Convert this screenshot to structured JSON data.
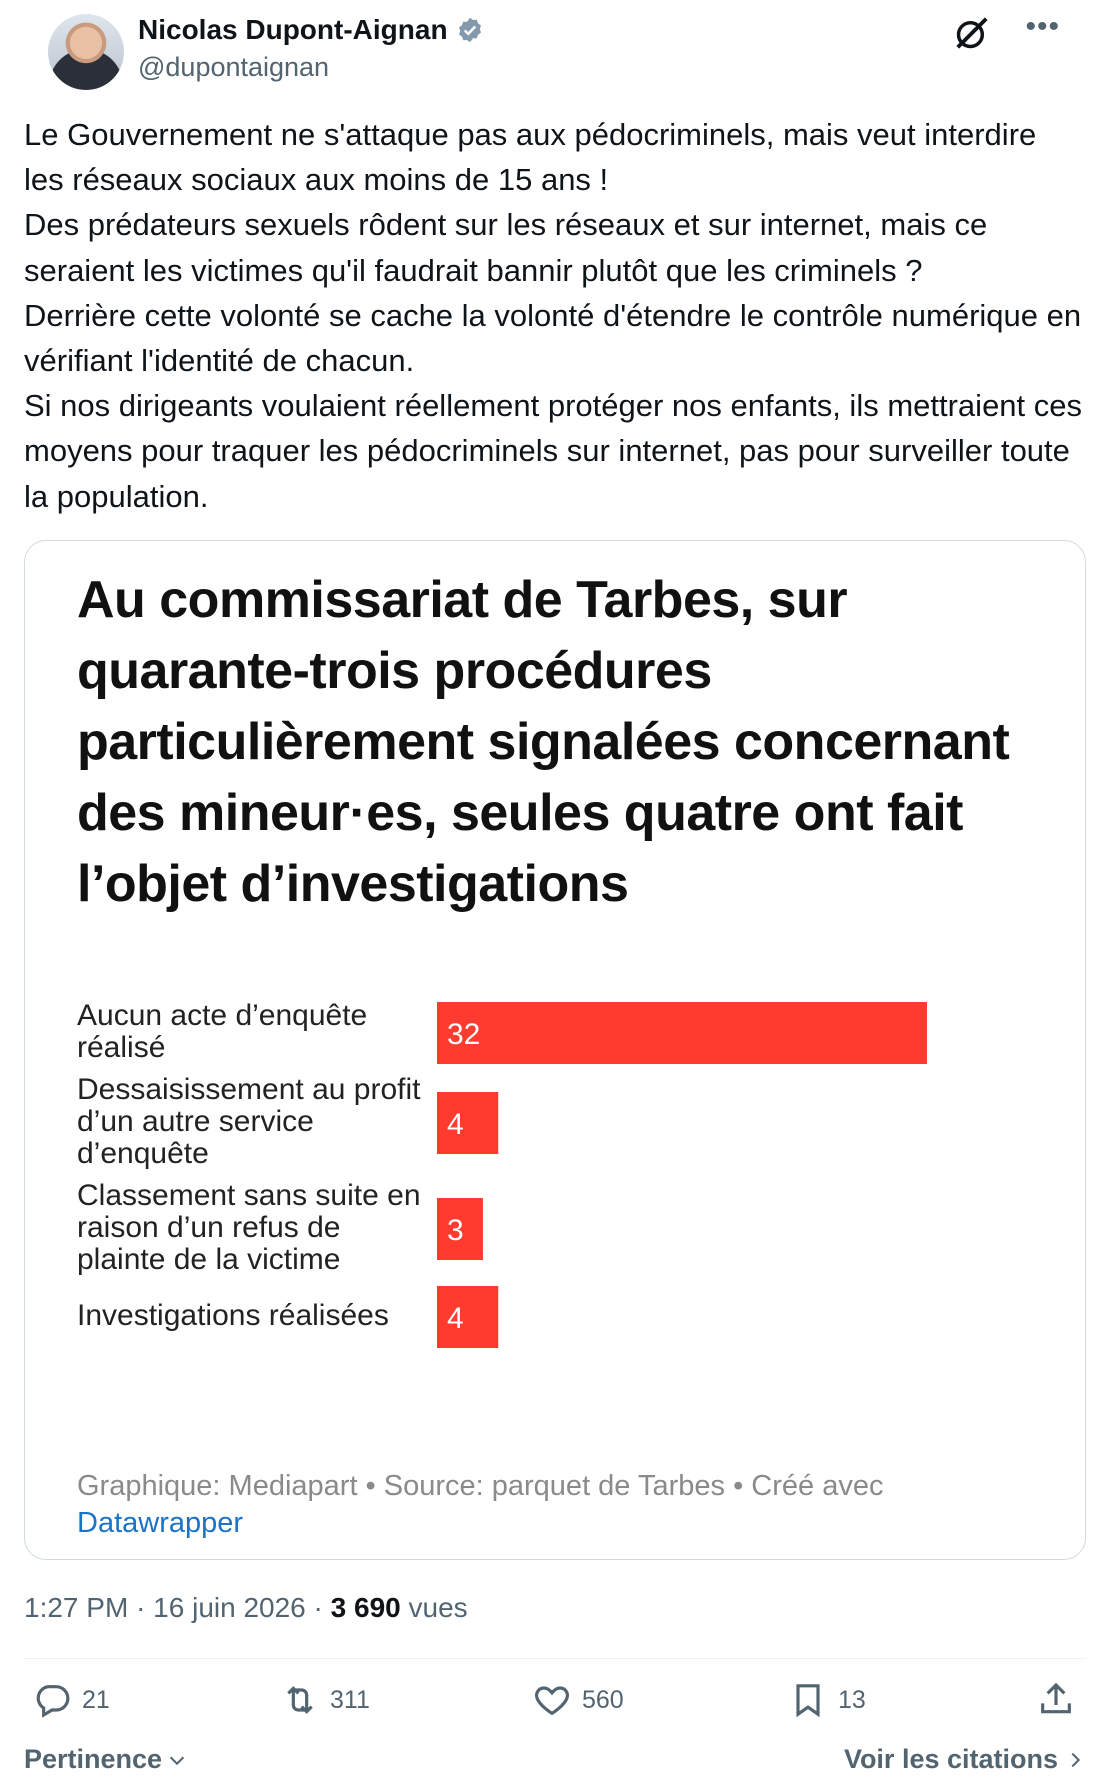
{
  "author": {
    "name": "Nicolas Dupont-Aignan",
    "handle": "@dupontaignan"
  },
  "tweet": {
    "text": "Le Gouvernement ne s'attaque pas aux pédocriminels, mais veut interdire les réseaux sociaux aux moins de 15 ans !\nDes prédateurs sexuels rôdent sur les réseaux et sur internet, mais ce seraient les victimes qu'il faudrait bannir plutôt que les criminels ?\nDerrière cette volonté se cache la volonté d'étendre le contrôle numérique en vérifiant l'identité de chacun.\nSi nos dirigeants voulaient réellement protéger nos enfants, ils mettraient ces moyens pour traquer les pédocriminels sur internet, pas pour surveiller toute la population."
  },
  "chart_data": {
    "type": "bar",
    "orientation": "horizontal",
    "title": "Au commissariat de Tarbes, sur quarante-trois procédures particulièrement signalées concernant des mineur·es, seules quatre ont fait l’objet d’investigations",
    "categories": [
      "Aucun acte d’enquête réalisé",
      "Dessaisissement au profit d’un autre service d’enquête",
      "Classement sans suite en raison d’un refus de plainte de la victime",
      "Investigations réalisées"
    ],
    "values": [
      32,
      4,
      3,
      4
    ],
    "value_labels": [
      "32",
      "4",
      "3",
      "4"
    ],
    "bar_color": "#ff3b2f",
    "xlim": [
      0,
      32
    ],
    "grid": false
  },
  "chart_footer": {
    "text": "Graphique: Mediapart • Source: parquet de Tarbes • Créé avec",
    "link": "Datawrapper"
  },
  "meta": {
    "time": "1:27 PM",
    "date": "16 juin 2026",
    "separator": "·",
    "views_count": "3 690",
    "views_label": "vues"
  },
  "actions": {
    "replies": "21",
    "retweets": "311",
    "likes": "560",
    "bookmarks": "13"
  },
  "bottom": {
    "sort_label": "Pertinence",
    "quotes_label": "Voir les citations"
  },
  "colors": {
    "accent_link": "#1a73c7",
    "secondary_text": "#536471",
    "verified": "#829aab"
  },
  "icons": {
    "verified": "verified-badge-icon",
    "grok": "grok-icon",
    "more": "more-icon",
    "reply": "reply-icon",
    "retweet": "retweet-icon",
    "like": "heart-icon",
    "bookmark": "bookmark-icon",
    "share": "share-icon"
  }
}
